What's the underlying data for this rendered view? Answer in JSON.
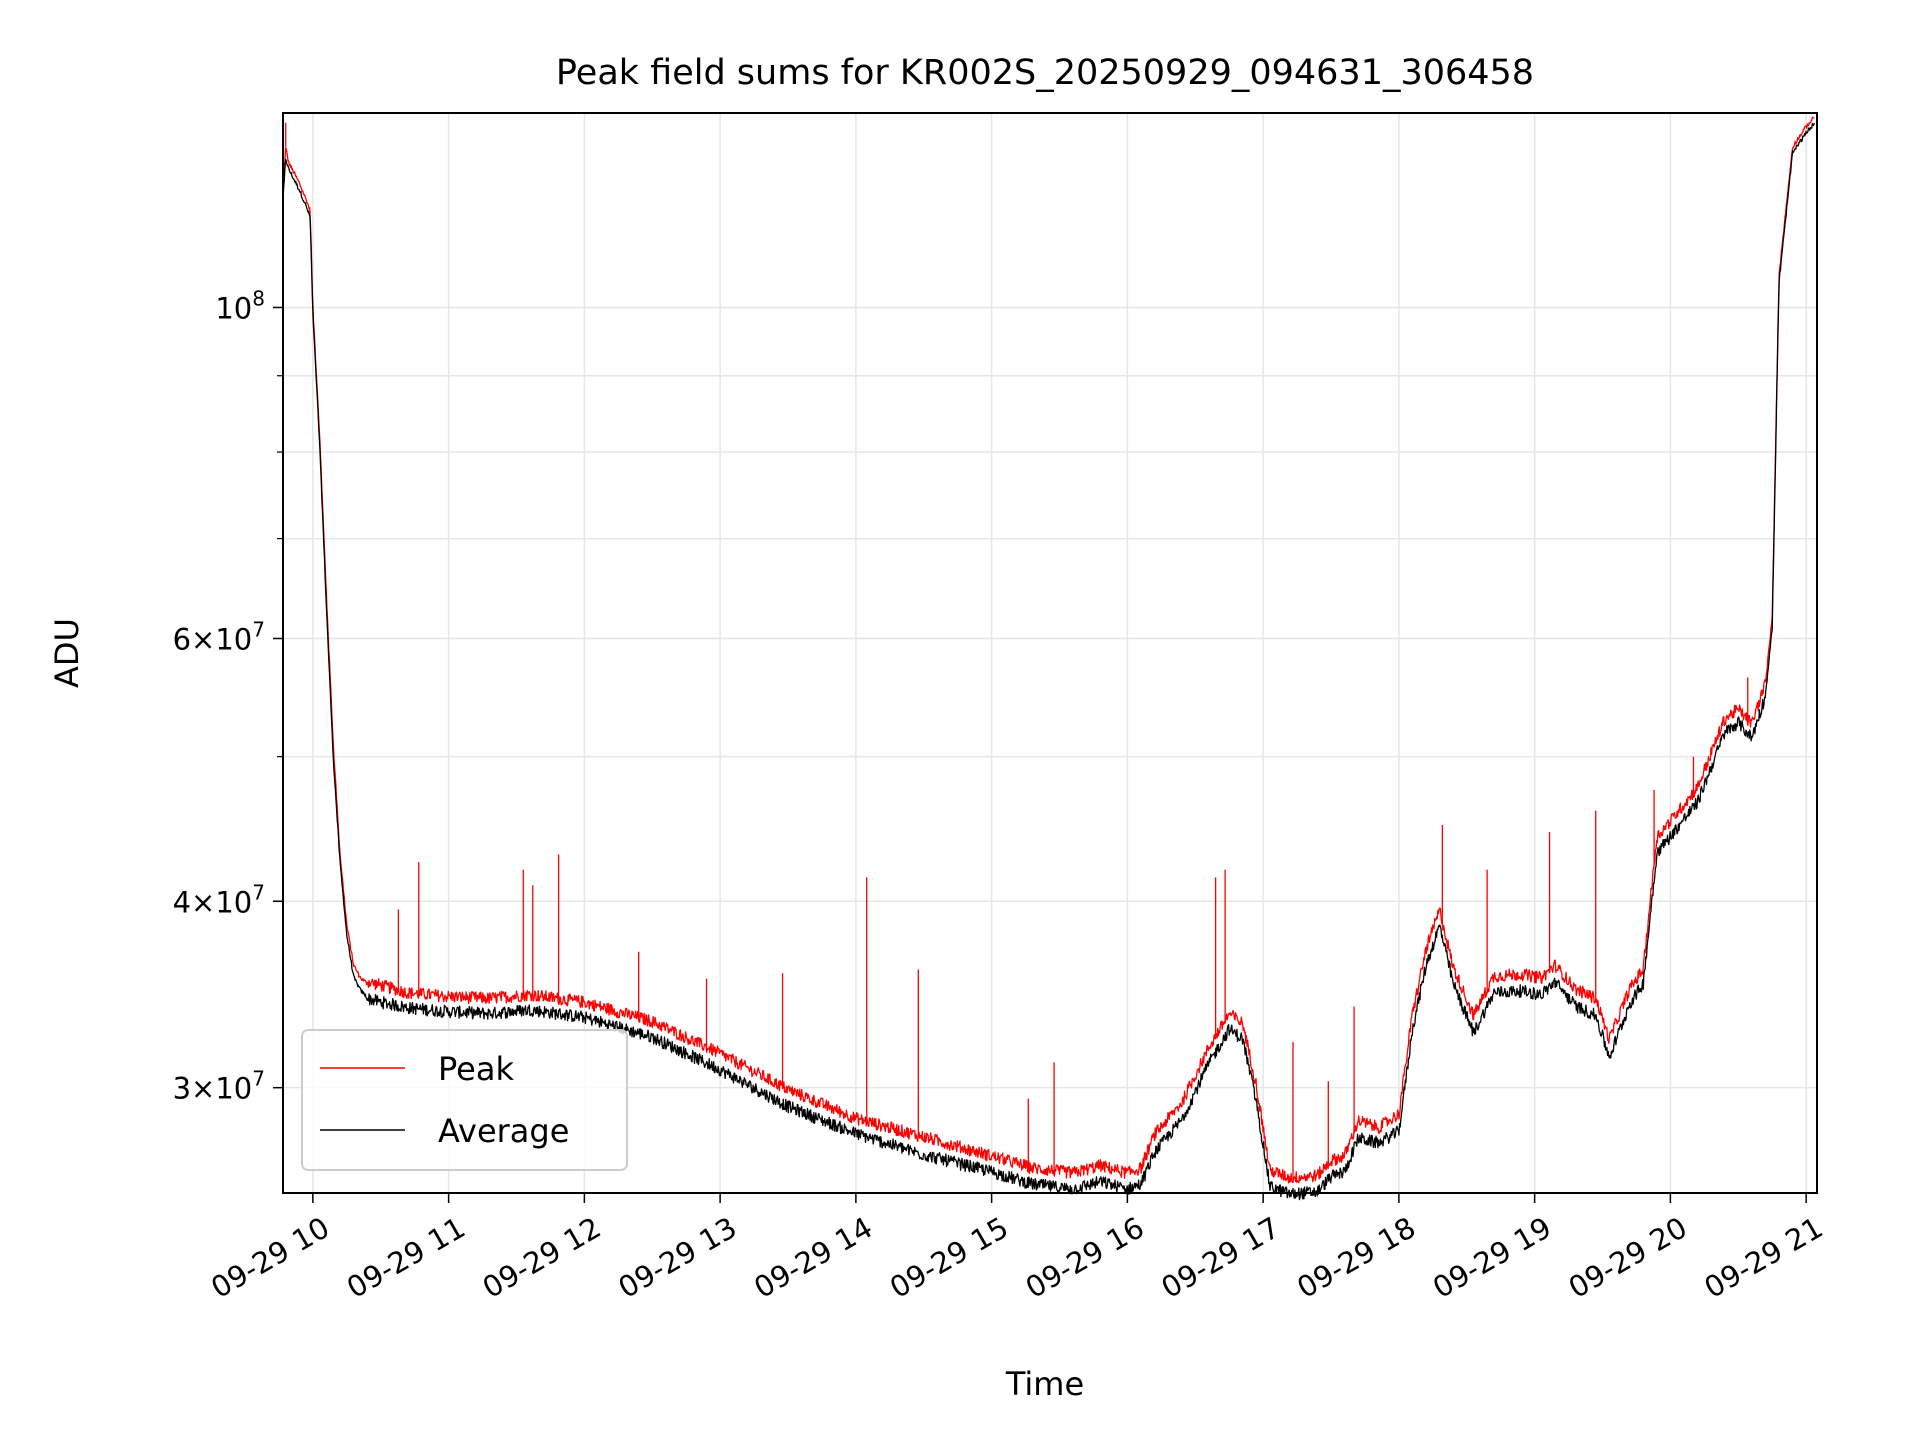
{
  "chart_data": {
    "type": "line",
    "title": "Peak field sums for KR002S_20250929_094631_306458",
    "xlabel": "Time",
    "ylabel": "ADU",
    "yscale": "log",
    "ylim": [
      25500000,
      135000000
    ],
    "xlim_hours": [
      9.78,
      21.08
    ],
    "grid": true,
    "legend_position": "lower-left",
    "x_ticks": [
      {
        "hour": 10,
        "label": "09-29 10"
      },
      {
        "hour": 11,
        "label": "09-29 11"
      },
      {
        "hour": 12,
        "label": "09-29 12"
      },
      {
        "hour": 13,
        "label": "09-29 13"
      },
      {
        "hour": 14,
        "label": "09-29 14"
      },
      {
        "hour": 15,
        "label": "09-29 15"
      },
      {
        "hour": 16,
        "label": "09-29 16"
      },
      {
        "hour": 17,
        "label": "09-29 17"
      },
      {
        "hour": 18,
        "label": "09-29 18"
      },
      {
        "hour": 19,
        "label": "09-29 19"
      },
      {
        "hour": 20,
        "label": "09-29 20"
      },
      {
        "hour": 21,
        "label": "09-29 21"
      }
    ],
    "y_ticks_major": [
      {
        "value": 100000000,
        "base": "10",
        "exp": "8",
        "mant": ""
      },
      {
        "value": 60000000,
        "base": "10",
        "exp": "7",
        "mant": "6×"
      },
      {
        "value": 40000000,
        "base": "10",
        "exp": "7",
        "mant": "4×"
      },
      {
        "value": 30000000,
        "base": "10",
        "exp": "7",
        "mant": "3×"
      }
    ],
    "y_ticks_minor": [
      50000000,
      70000000,
      80000000,
      90000000
    ],
    "baseline": {
      "hours": [
        9.78,
        9.8,
        9.82,
        9.9,
        9.95,
        9.98,
        10.0,
        10.05,
        10.1,
        10.15,
        10.2,
        10.25,
        10.3,
        10.35,
        10.4,
        10.5,
        10.7,
        11.0,
        11.3,
        11.6,
        12.0,
        12.5,
        13.0,
        13.5,
        14.0,
        14.5,
        15.0,
        15.3,
        15.6,
        15.8,
        16.0,
        16.1,
        16.2,
        16.4,
        16.6,
        16.75,
        16.85,
        16.95,
        17.05,
        17.2,
        17.4,
        17.5,
        17.6,
        17.7,
        17.85,
        18.0,
        18.1,
        18.2,
        18.3,
        18.4,
        18.55,
        18.7,
        18.9,
        19.05,
        19.15,
        19.3,
        19.45,
        19.55,
        19.7,
        19.8,
        19.9,
        20.0,
        20.2,
        20.4,
        20.5,
        20.6,
        20.7,
        20.75,
        20.8,
        20.9,
        21.0,
        21.06
      ],
      "peak": [
        120000000,
        128000000,
        125000000,
        121000000,
        118000000,
        116000000,
        100000000,
        82000000,
        64000000,
        51000000,
        43000000,
        38500000,
        36200000,
        35500000,
        35200000,
        35000000,
        34600000,
        34400000,
        34300000,
        34500000,
        34100000,
        33100000,
        31500000,
        29800000,
        28500000,
        27700000,
        26900000,
        26400000,
        26200000,
        26500000,
        26200000,
        26400000,
        27800000,
        29200000,
        31800000,
        33500000,
        33000000,
        30000000,
        26300000,
        26000000,
        26100000,
        26700000,
        26900000,
        28400000,
        28100000,
        28700000,
        33500000,
        37000000,
        39300000,
        36000000,
        33400000,
        35500000,
        35600000,
        35400000,
        36100000,
        34800000,
        34300000,
        32200000,
        34800000,
        35900000,
        44000000,
        45100000,
        47500000,
        52800000,
        53600000,
        52400000,
        55800000,
        62000000,
        105000000,
        128000000,
        132000000,
        134000000
      ],
      "avg": [
        118000000,
        126000000,
        124000000,
        120000000,
        117000000,
        115000000,
        99000000,
        81000000,
        63000000,
        50000000,
        42500000,
        38000000,
        35600000,
        34900000,
        34500000,
        34300000,
        34000000,
        33800000,
        33700000,
        33900000,
        33500000,
        32500000,
        30900000,
        29200000,
        28000000,
        27100000,
        26400000,
        25900000,
        25700000,
        26000000,
        25700000,
        25900000,
        27200000,
        28600000,
        31200000,
        32900000,
        32400000,
        29400000,
        25800000,
        25500000,
        25600000,
        26200000,
        26400000,
        27800000,
        27600000,
        28100000,
        32900000,
        36300000,
        38600000,
        35300000,
        32700000,
        34800000,
        34900000,
        34700000,
        35400000,
        34100000,
        33600000,
        31500000,
        34200000,
        35300000,
        43200000,
        44300000,
        46700000,
        52000000,
        52800000,
        51600000,
        55000000,
        61000000,
        104000000,
        127000000,
        131000000,
        133000000
      ]
    },
    "peak_spikes": [
      {
        "hour": 9.8,
        "value": 133000000
      },
      {
        "hour": 10.78,
        "value": 42500000
      },
      {
        "hour": 10.63,
        "value": 39500000
      },
      {
        "hour": 11.55,
        "value": 42000000
      },
      {
        "hour": 11.62,
        "value": 41000000
      },
      {
        "hour": 11.81,
        "value": 43000000
      },
      {
        "hour": 12.4,
        "value": 37000000
      },
      {
        "hour": 12.9,
        "value": 35500000
      },
      {
        "hour": 13.46,
        "value": 35800000
      },
      {
        "hour": 14.08,
        "value": 41500000
      },
      {
        "hour": 14.46,
        "value": 36000000
      },
      {
        "hour": 15.46,
        "value": 31200000
      },
      {
        "hour": 15.27,
        "value": 29500000
      },
      {
        "hour": 16.72,
        "value": 42000000
      },
      {
        "hour": 16.65,
        "value": 41500000
      },
      {
        "hour": 17.22,
        "value": 32200000
      },
      {
        "hour": 17.67,
        "value": 34000000
      },
      {
        "hour": 17.48,
        "value": 30300000
      },
      {
        "hour": 18.32,
        "value": 45000000
      },
      {
        "hour": 18.65,
        "value": 42000000
      },
      {
        "hour": 19.11,
        "value": 44500000
      },
      {
        "hour": 19.45,
        "value": 46000000
      },
      {
        "hour": 19.88,
        "value": 47500000
      },
      {
        "hour": 20.17,
        "value": 50000000
      },
      {
        "hour": 20.57,
        "value": 56500000
      }
    ],
    "series": [
      {
        "name": "Peak",
        "color": "#ff0000"
      },
      {
        "name": "Average",
        "color": "#000000"
      }
    ]
  }
}
